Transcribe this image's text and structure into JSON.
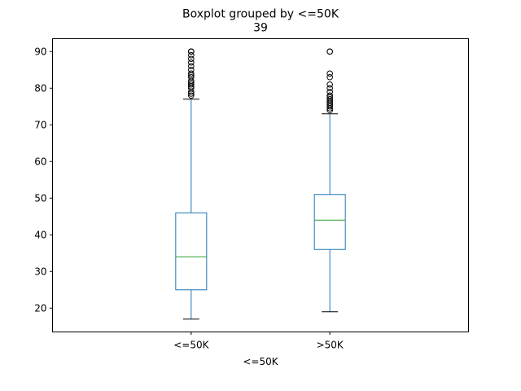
{
  "chart_data": {
    "type": "boxplot",
    "title": "Boxplot grouped by <=50K",
    "subtitle": "39",
    "xlabel": "<=50K",
    "ylabel": "",
    "ylim": [
      13.5,
      93.5
    ],
    "yticks": [
      20,
      30,
      40,
      50,
      60,
      70,
      80,
      90
    ],
    "grid": false,
    "colors": {
      "box": "#1f77b4",
      "median": "#2ca02c",
      "whisker_cap": "#000000",
      "flier": "#000000"
    },
    "categories": [
      "<=50K",
      ">50K"
    ],
    "boxes": [
      {
        "category": "<=50K",
        "whislo": 17,
        "q1": 25,
        "median": 34,
        "q3": 46,
        "whishi": 77,
        "fliers": [
          78,
          78.5,
          79,
          80,
          80.5,
          81,
          81.5,
          82,
          83,
          83.5,
          84,
          85,
          86,
          87,
          88,
          89,
          90,
          90,
          90
        ]
      },
      {
        "category": ">50K",
        "whislo": 19,
        "q1": 36,
        "median": 44,
        "q3": 51,
        "whishi": 73,
        "fliers": [
          74,
          74.5,
          75,
          75.5,
          76,
          76.5,
          77,
          77.5,
          78,
          79,
          80,
          81,
          83,
          84,
          90,
          90
        ]
      }
    ]
  }
}
